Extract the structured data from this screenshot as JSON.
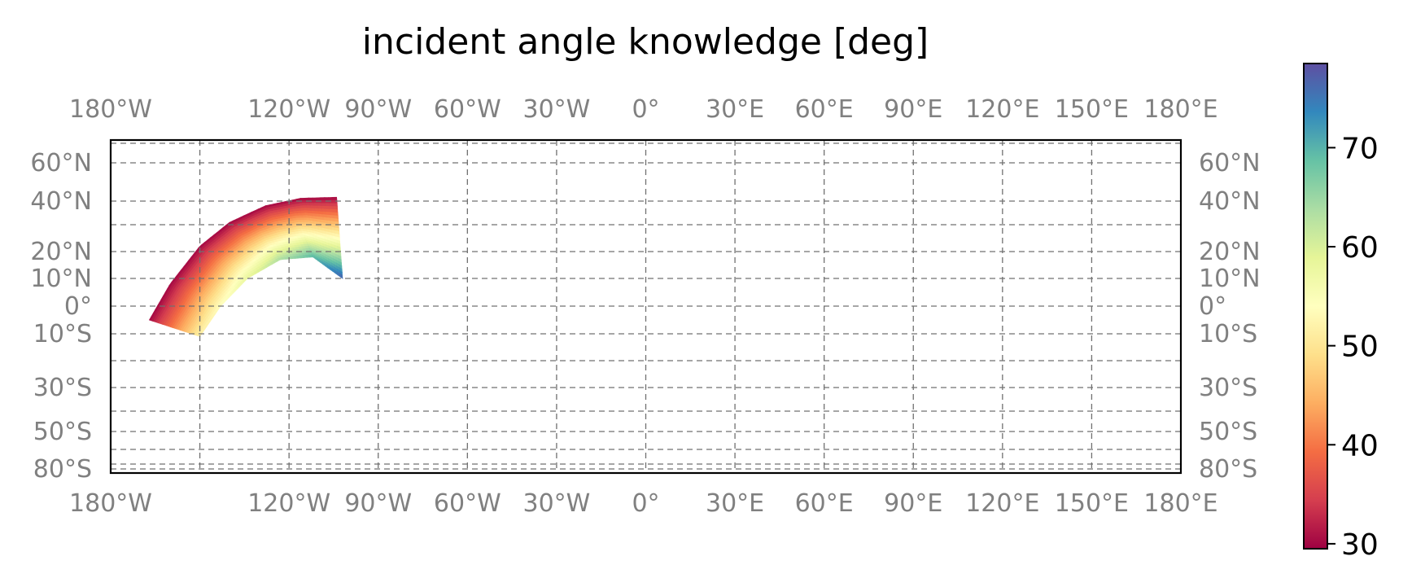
{
  "chart_data": {
    "type": "heatmap",
    "title": "incident angle knowledge [deg]",
    "projection": "Mercator-like (latitude axis stretched toward poles)",
    "xlim": [
      -180,
      180
    ],
    "ylim": [
      -85,
      72
    ],
    "longitude_ticks": [
      {
        "value": -180,
        "label": "180°W"
      },
      {
        "value": -120,
        "label": "120°W"
      },
      {
        "value": -90,
        "label": "90°W"
      },
      {
        "value": -60,
        "label": "60°W"
      },
      {
        "value": -30,
        "label": "30°W"
      },
      {
        "value": 0,
        "label": "0°"
      },
      {
        "value": 30,
        "label": "30°E"
      },
      {
        "value": 60,
        "label": "60°E"
      },
      {
        "value": 90,
        "label": "90°E"
      },
      {
        "value": 120,
        "label": "120°E"
      },
      {
        "value": 150,
        "label": "150°E"
      },
      {
        "value": 180,
        "label": "180°E"
      }
    ],
    "longitude_gridlines": [
      -150,
      -120,
      -90,
      -60,
      -30,
      0,
      30,
      60,
      90,
      120,
      150
    ],
    "latitude_ticks": [
      {
        "value": 60,
        "label": "60°N"
      },
      {
        "value": 40,
        "label": "40°N"
      },
      {
        "value": 20,
        "label": "20°N"
      },
      {
        "value": 10,
        "label": "10°N"
      },
      {
        "value": 0,
        "label": "0°"
      },
      {
        "value": -10,
        "label": "10°S"
      },
      {
        "value": -30,
        "label": "30°S"
      },
      {
        "value": -50,
        "label": "50°S"
      },
      {
        "value": -80,
        "label": "80°S"
      }
    ],
    "latitude_gridlines": [
      70,
      60,
      40,
      30,
      20,
      10,
      0,
      -10,
      -20,
      -30,
      -40,
      -50,
      -60,
      -70,
      -80
    ],
    "grid": true,
    "swath": {
      "description": "curved swath of incident angles",
      "outer_edge": [
        {
          "lon": -167,
          "lat": -5
        },
        {
          "lon": -160,
          "lat": 8
        },
        {
          "lon": -150,
          "lat": 22
        },
        {
          "lon": -140,
          "lat": 31
        },
        {
          "lon": -128,
          "lat": 38
        },
        {
          "lon": -116,
          "lat": 41.5
        },
        {
          "lon": -104,
          "lat": 42
        }
      ],
      "inner_edge": [
        {
          "lon": -150,
          "lat": -11
        },
        {
          "lon": -143,
          "lat": 0
        },
        {
          "lon": -134,
          "lat": 10
        },
        {
          "lon": -123,
          "lat": 17
        },
        {
          "lon": -112,
          "lat": 18
        },
        {
          "lon": -102,
          "lat": 10
        }
      ],
      "value_range_outer_edge": 30,
      "value_range_inner_edge_west": 52,
      "value_range_inner_edge_east": 77
    },
    "colorbar": {
      "cmap": "Spectral",
      "min": 29.5,
      "max": 78.5,
      "ticks": [
        {
          "value": 30,
          "label": "30"
        },
        {
          "value": 40,
          "label": "40"
        },
        {
          "value": 50,
          "label": "50"
        },
        {
          "value": 60,
          "label": "60"
        },
        {
          "value": 70,
          "label": "70"
        }
      ],
      "placement": "right"
    }
  }
}
